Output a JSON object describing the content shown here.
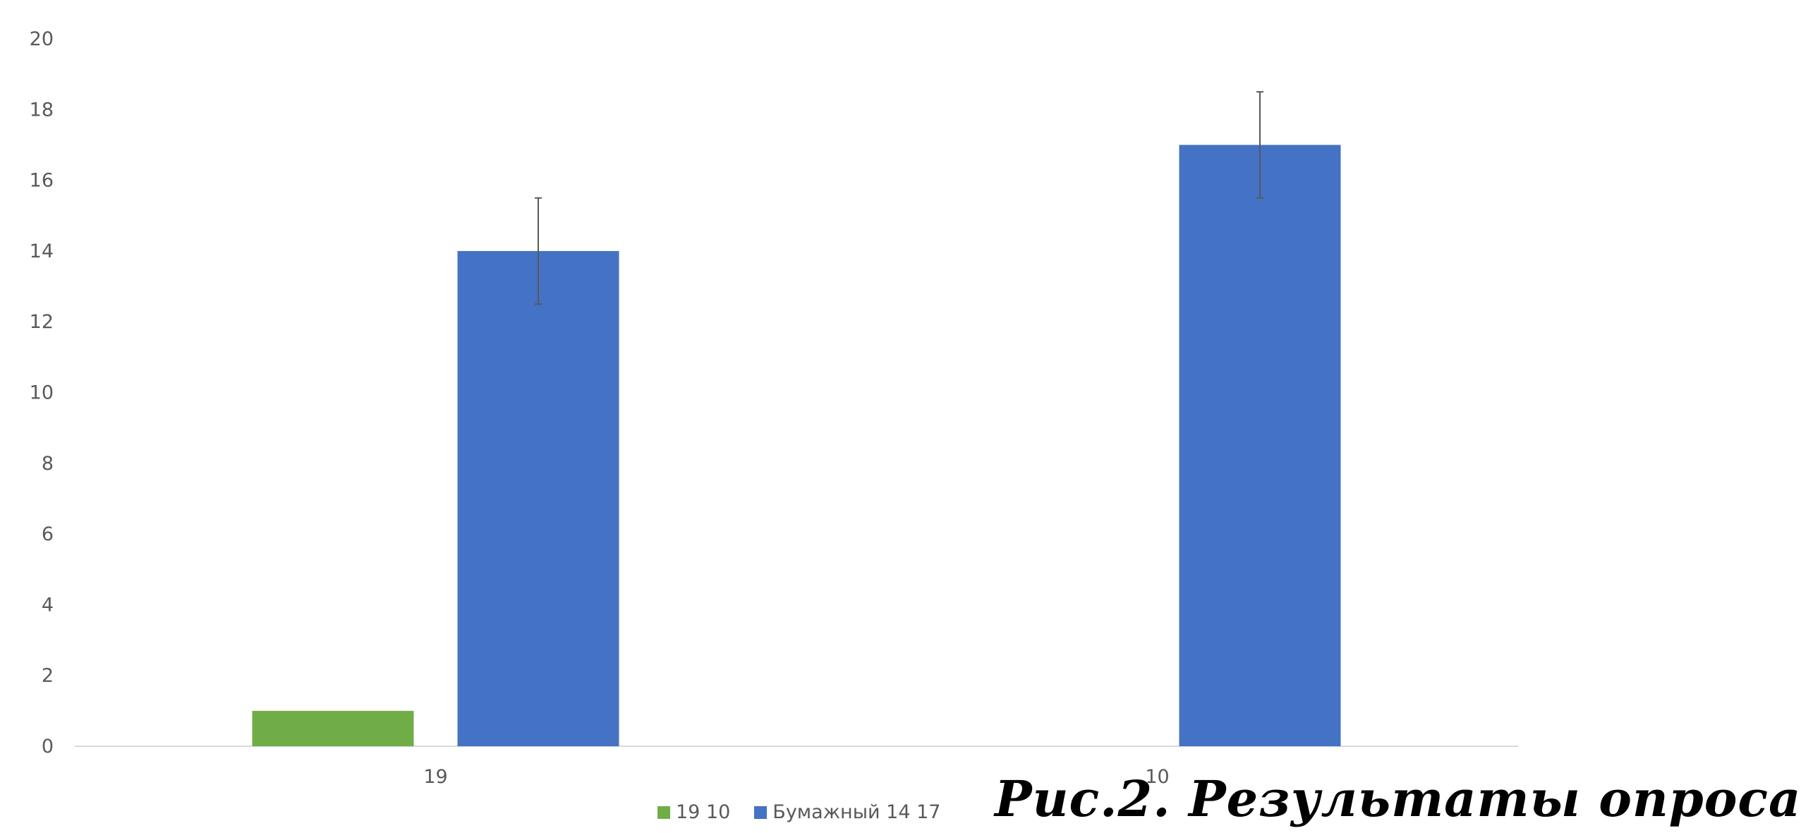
{
  "chart_data": {
    "type": "bar",
    "categories": [
      "19",
      "10"
    ],
    "series": [
      {
        "name": "19 10",
        "color": "#70AD47",
        "values": [
          1,
          0
        ],
        "error": [
          null,
          null
        ]
      },
      {
        "name": "Бумажный 14 17",
        "color": "#4472C4",
        "values": [
          14,
          17
        ],
        "error": [
          1.5,
          1.5
        ]
      }
    ],
    "ylim": [
      0,
      20
    ],
    "yticks": [
      0,
      2,
      4,
      6,
      8,
      10,
      12,
      14,
      16,
      18,
      20
    ],
    "grid": false,
    "legend_position": "bottom",
    "title": "",
    "xlabel": "",
    "ylabel": ""
  },
  "caption": "Рис.2. Результаты опроса"
}
